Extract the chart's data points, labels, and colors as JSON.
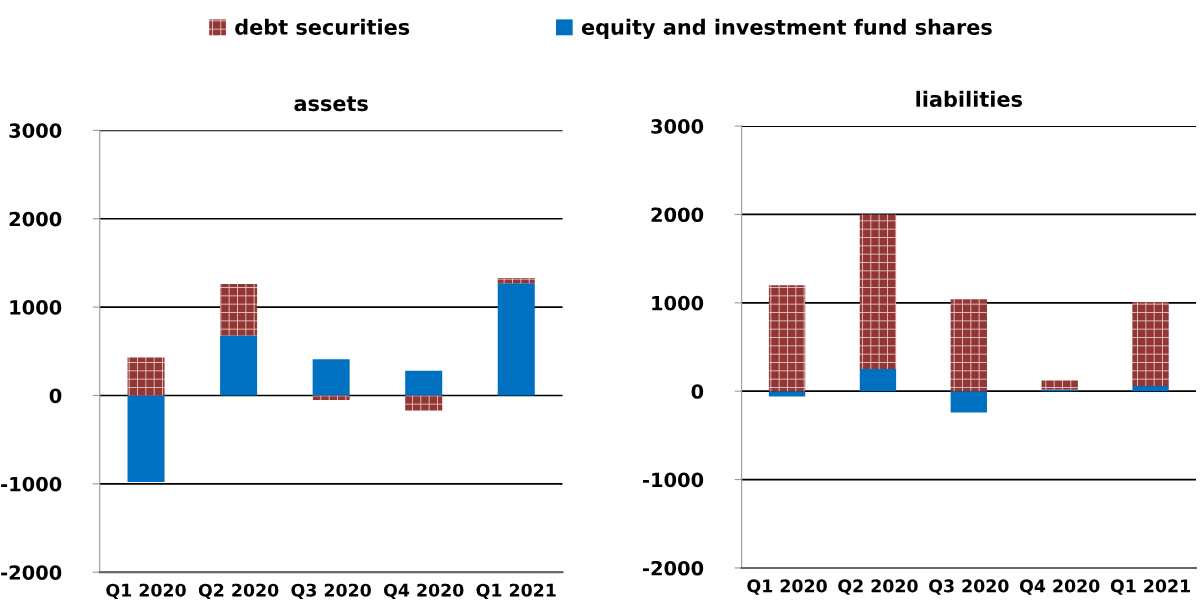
{
  "chart_data": [
    {
      "type": "bar",
      "title": "assets",
      "stacked": true,
      "categories": [
        "Q1 2020",
        "Q2 2020",
        "Q3 2020",
        "Q4 2020",
        "Q1 2021"
      ],
      "series": [
        {
          "name": "equity and investment fund shares",
          "color": "#0070c0",
          "values": [
            -980,
            680,
            410,
            280,
            1270
          ]
        },
        {
          "name": "debt securities",
          "color": "#943634",
          "values": [
            430,
            580,
            -50,
            -170,
            60
          ]
        }
      ],
      "ylim": [
        -2000,
        3000
      ],
      "yticks": [
        -2000,
        -1000,
        0,
        1000,
        2000,
        3000
      ],
      "grid": "y",
      "legend": "top"
    },
    {
      "type": "bar",
      "title": "liabilities",
      "stacked": true,
      "categories": [
        "Q1 2020",
        "Q2 2020",
        "Q3 2020",
        "Q4 2020",
        "Q1 2021"
      ],
      "series": [
        {
          "color": "#0070c0",
          "values": [
            -60,
            250,
            -240,
            20,
            60
          ]
        },
        {
          "color": "#943634",
          "values": [
            1200,
            1750,
            1040,
            100,
            950
          ]
        }
      ],
      "ylim": [
        -2000,
        3000
      ],
      "yticks": [
        -2000,
        -1000,
        0,
        1000,
        2000,
        3000
      ],
      "grid": "y"
    }
  ]
}
